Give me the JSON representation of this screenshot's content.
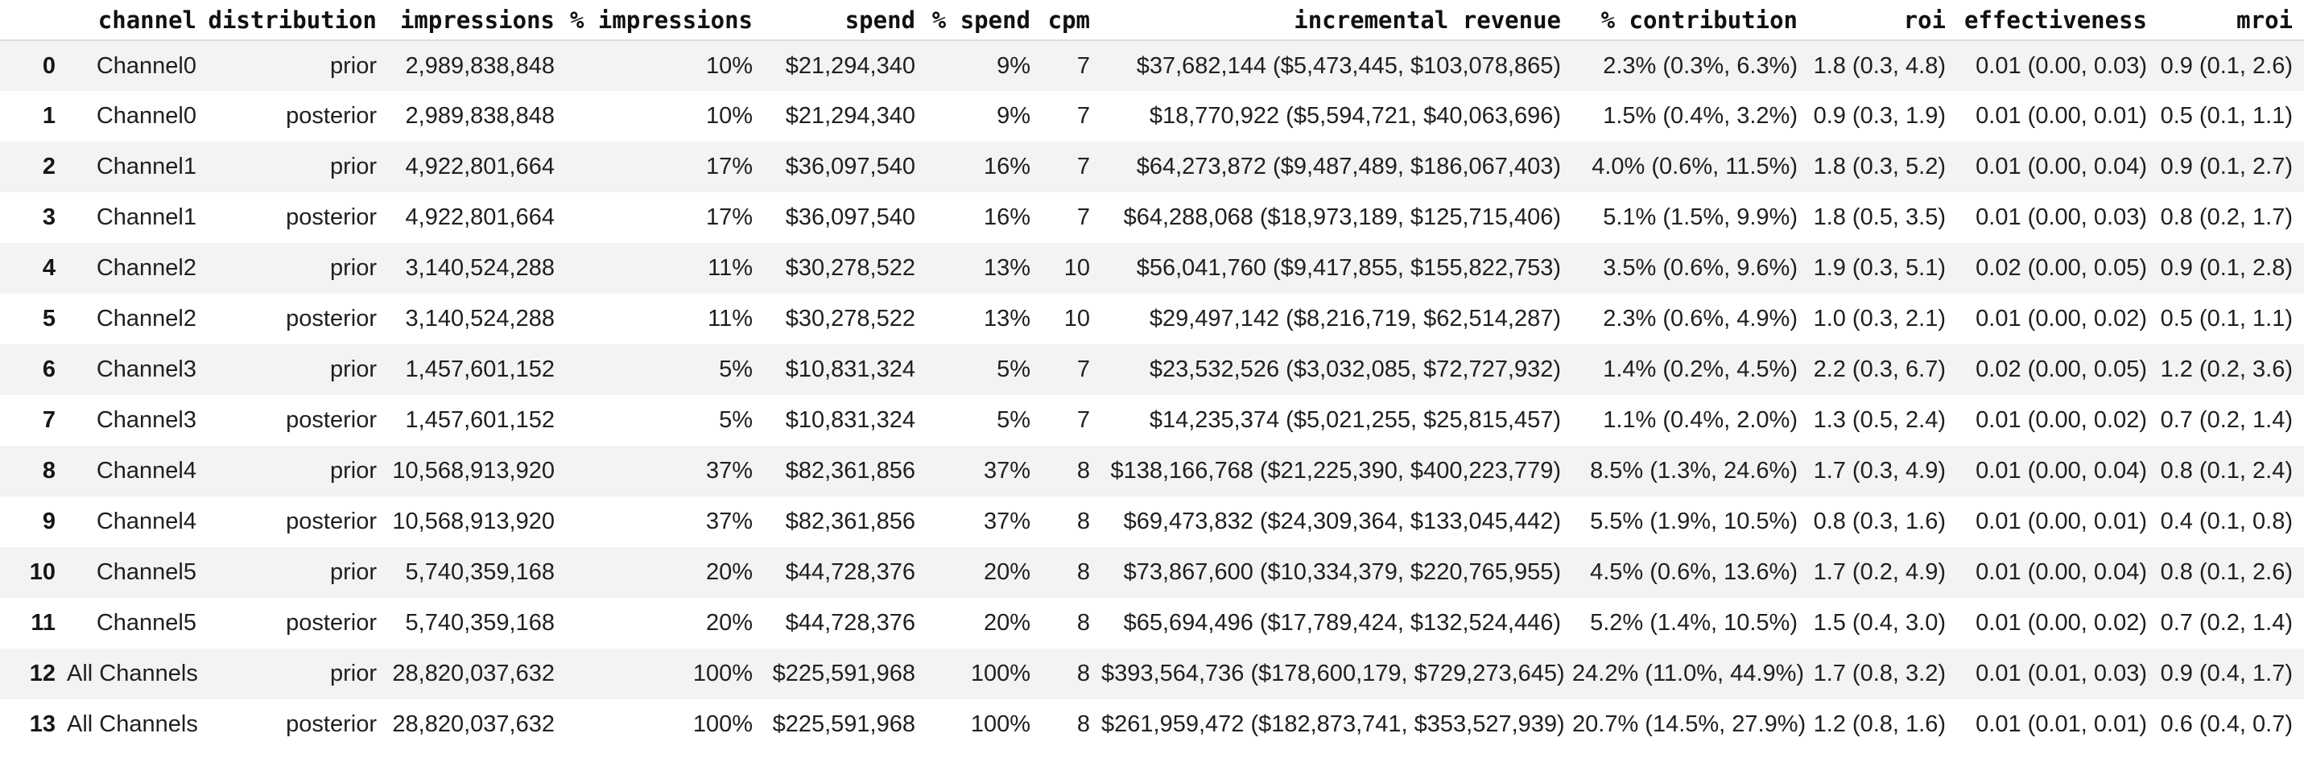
{
  "colors": {
    "background": "#ffffff",
    "row_stripe": "#f3f3f3",
    "header_border": "#dedede",
    "body_text": "#1f1f1f",
    "header_text": "#111111"
  },
  "chart_data": {
    "type": "table",
    "title": "",
    "column_keys": [
      "index",
      "channel",
      "distribution",
      "impressions",
      "pct-impressions",
      "spend",
      "pct-spend",
      "cpm",
      "incremental-revenue",
      "pct-contribution",
      "roi",
      "effectiveness",
      "mroi"
    ],
    "columns": [
      "",
      "channel",
      "distribution",
      "impressions",
      "% impressions",
      "spend",
      "% spend",
      "cpm",
      "incremental revenue",
      "% contribution",
      "roi",
      "effectiveness",
      "mroi"
    ],
    "rows": [
      [
        "0",
        "Channel0",
        "prior",
        "2,989,838,848",
        "10%",
        "$21,294,340",
        "9%",
        "7",
        "$37,682,144 ($5,473,445, $103,078,865)",
        "2.3% (0.3%, 6.3%)",
        "1.8 (0.3, 4.8)",
        "0.01 (0.00, 0.03)",
        "0.9 (0.1, 2.6)"
      ],
      [
        "1",
        "Channel0",
        "posterior",
        "2,989,838,848",
        "10%",
        "$21,294,340",
        "9%",
        "7",
        "$18,770,922 ($5,594,721, $40,063,696)",
        "1.5% (0.4%, 3.2%)",
        "0.9 (0.3, 1.9)",
        "0.01 (0.00, 0.01)",
        "0.5 (0.1, 1.1)"
      ],
      [
        "2",
        "Channel1",
        "prior",
        "4,922,801,664",
        "17%",
        "$36,097,540",
        "16%",
        "7",
        "$64,273,872 ($9,487,489, $186,067,403)",
        "4.0% (0.6%, 11.5%)",
        "1.8 (0.3, 5.2)",
        "0.01 (0.00, 0.04)",
        "0.9 (0.1, 2.7)"
      ],
      [
        "3",
        "Channel1",
        "posterior",
        "4,922,801,664",
        "17%",
        "$36,097,540",
        "16%",
        "7",
        "$64,288,068 ($18,973,189, $125,715,406)",
        "5.1% (1.5%, 9.9%)",
        "1.8 (0.5, 3.5)",
        "0.01 (0.00, 0.03)",
        "0.8 (0.2, 1.7)"
      ],
      [
        "4",
        "Channel2",
        "prior",
        "3,140,524,288",
        "11%",
        "$30,278,522",
        "13%",
        "10",
        "$56,041,760 ($9,417,855, $155,822,753)",
        "3.5% (0.6%, 9.6%)",
        "1.9 (0.3, 5.1)",
        "0.02 (0.00, 0.05)",
        "0.9 (0.1, 2.8)"
      ],
      [
        "5",
        "Channel2",
        "posterior",
        "3,140,524,288",
        "11%",
        "$30,278,522",
        "13%",
        "10",
        "$29,497,142 ($8,216,719, $62,514,287)",
        "2.3% (0.6%, 4.9%)",
        "1.0 (0.3, 2.1)",
        "0.01 (0.00, 0.02)",
        "0.5 (0.1, 1.1)"
      ],
      [
        "6",
        "Channel3",
        "prior",
        "1,457,601,152",
        "5%",
        "$10,831,324",
        "5%",
        "7",
        "$23,532,526 ($3,032,085, $72,727,932)",
        "1.4% (0.2%, 4.5%)",
        "2.2 (0.3, 6.7)",
        "0.02 (0.00, 0.05)",
        "1.2 (0.2, 3.6)"
      ],
      [
        "7",
        "Channel3",
        "posterior",
        "1,457,601,152",
        "5%",
        "$10,831,324",
        "5%",
        "7",
        "$14,235,374 ($5,021,255, $25,815,457)",
        "1.1% (0.4%, 2.0%)",
        "1.3 (0.5, 2.4)",
        "0.01 (0.00, 0.02)",
        "0.7 (0.2, 1.4)"
      ],
      [
        "8",
        "Channel4",
        "prior",
        "10,568,913,920",
        "37%",
        "$82,361,856",
        "37%",
        "8",
        "$138,166,768 ($21,225,390, $400,223,779)",
        "8.5% (1.3%, 24.6%)",
        "1.7 (0.3, 4.9)",
        "0.01 (0.00, 0.04)",
        "0.8 (0.1, 2.4)"
      ],
      [
        "9",
        "Channel4",
        "posterior",
        "10,568,913,920",
        "37%",
        "$82,361,856",
        "37%",
        "8",
        "$69,473,832 ($24,309,364, $133,045,442)",
        "5.5% (1.9%, 10.5%)",
        "0.8 (0.3, 1.6)",
        "0.01 (0.00, 0.01)",
        "0.4 (0.1, 0.8)"
      ],
      [
        "10",
        "Channel5",
        "prior",
        "5,740,359,168",
        "20%",
        "$44,728,376",
        "20%",
        "8",
        "$73,867,600 ($10,334,379, $220,765,955)",
        "4.5% (0.6%, 13.6%)",
        "1.7 (0.2, 4.9)",
        "0.01 (0.00, 0.04)",
        "0.8 (0.1, 2.6)"
      ],
      [
        "11",
        "Channel5",
        "posterior",
        "5,740,359,168",
        "20%",
        "$44,728,376",
        "20%",
        "8",
        "$65,694,496 ($17,789,424, $132,524,446)",
        "5.2% (1.4%, 10.5%)",
        "1.5 (0.4, 3.0)",
        "0.01 (0.00, 0.02)",
        "0.7 (0.2, 1.4)"
      ],
      [
        "12",
        "All Channels",
        "prior",
        "28,820,037,632",
        "100%",
        "$225,591,968",
        "100%",
        "8",
        "$393,564,736 ($178,600,179, $729,273,645)",
        "24.2% (11.0%, 44.9%)",
        "1.7 (0.8, 3.2)",
        "0.01 (0.01, 0.03)",
        "0.9 (0.4, 1.7)"
      ],
      [
        "13",
        "All Channels",
        "posterior",
        "28,820,037,632",
        "100%",
        "$225,591,968",
        "100%",
        "8",
        "$261,959,472 ($182,873,741, $353,527,939)",
        "20.7% (14.5%, 27.9%)",
        "1.2 (0.8, 1.6)",
        "0.01 (0.01, 0.01)",
        "0.6 (0.4, 0.7)"
      ]
    ]
  }
}
